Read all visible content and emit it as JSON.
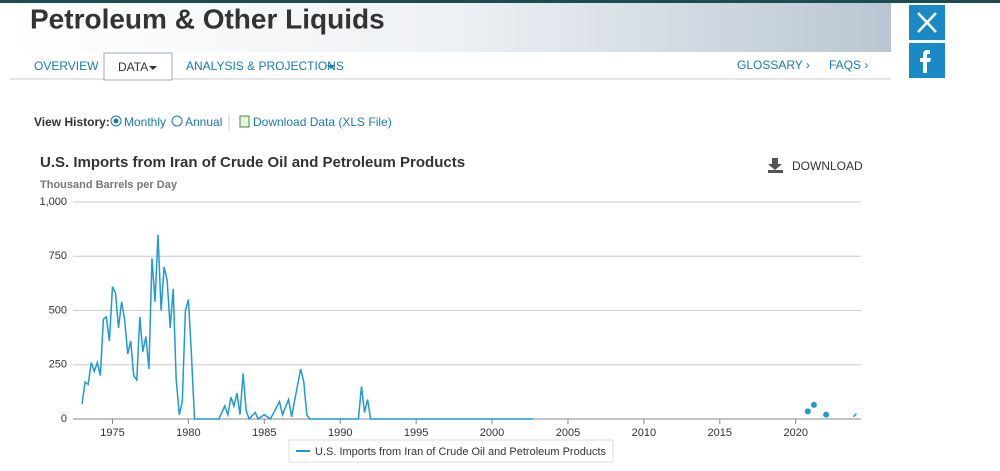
{
  "header": {
    "title": "Petroleum & Other Liquids",
    "tabs": [
      "OVERVIEW",
      "DATA",
      "ANALYSIS & PROJECTIONS"
    ],
    "links": [
      "GLOSSARY ›",
      "FAQS ›"
    ]
  },
  "toolbar": {
    "label": "View History:",
    "options": [
      "Monthly",
      "Annual"
    ],
    "download": "Download Data (XLS File)"
  },
  "chart_data": {
    "type": "line",
    "title": "U.S. Imports from Iran of Crude Oil and Petroleum Products",
    "subtitle": "Thousand Barrels per Day",
    "download": "DOWNLOAD",
    "x": [
      1973.0,
      1973.2,
      1973.4,
      1973.6,
      1973.8,
      1974.0,
      1974.2,
      1974.4,
      1974.6,
      1974.8,
      1975.0,
      1975.2,
      1975.4,
      1975.6,
      1975.8,
      1976.0,
      1976.2,
      1976.4,
      1976.6,
      1976.8,
      1977.0,
      1977.2,
      1977.4,
      1977.6,
      1977.8,
      1978.0,
      1978.2,
      1978.4,
      1978.6,
      1978.8,
      1979.0,
      1979.2,
      1979.4,
      1979.6,
      1979.8,
      1980.0,
      1980.2,
      1980.4,
      1982.0,
      1982.4,
      1982.6,
      1982.8,
      1983.0,
      1983.2,
      1983.4,
      1983.6,
      1983.8,
      1984.0,
      1984.4,
      1984.6,
      1985.0,
      1985.4,
      1986.0,
      1986.2,
      1986.6,
      1986.8,
      1987.2,
      1987.4,
      1987.6,
      1987.8,
      1988.0,
      1991.2,
      1991.4,
      1991.6,
      1991.8,
      1992.0,
      2002.7,
      2015.0,
      2020.8,
      2021.0,
      2021.2,
      2021.5,
      2022.0,
      2022.5,
      2023.8,
      2024.0
    ],
    "series": [
      {
        "name": "U.S. Imports from Iran of Crude Oil and Petroleum Products",
        "color": "#1f9ad2",
        "values": [
          70,
          170,
          160,
          260,
          220,
          260,
          200,
          460,
          470,
          360,
          610,
          580,
          420,
          540,
          460,
          300,
          360,
          200,
          180,
          470,
          310,
          380,
          230,
          740,
          540,
          850,
          500,
          700,
          640,
          420,
          600,
          180,
          20,
          80,
          500,
          550,
          300,
          0,
          0,
          60,
          20,
          100,
          60,
          120,
          20,
          210,
          40,
          0,
          30,
          0,
          20,
          0,
          80,
          20,
          90,
          10,
          160,
          230,
          170,
          20,
          0,
          0,
          150,
          30,
          90,
          0,
          0,
          null,
          35,
          null,
          65,
          null,
          20,
          null,
          10,
          25
        ]
      }
    ],
    "xlim": [
      1972.4,
      2024.3
    ],
    "xticks": [
      1975,
      1980,
      1985,
      1990,
      1995,
      2000,
      2005,
      2010,
      2015,
      2020
    ],
    "ylim": [
      0,
      1000
    ],
    "yticks": [
      0,
      250,
      500,
      750,
      {
        "value": 1000,
        "label": "1,000"
      }
    ],
    "grid": true
  }
}
